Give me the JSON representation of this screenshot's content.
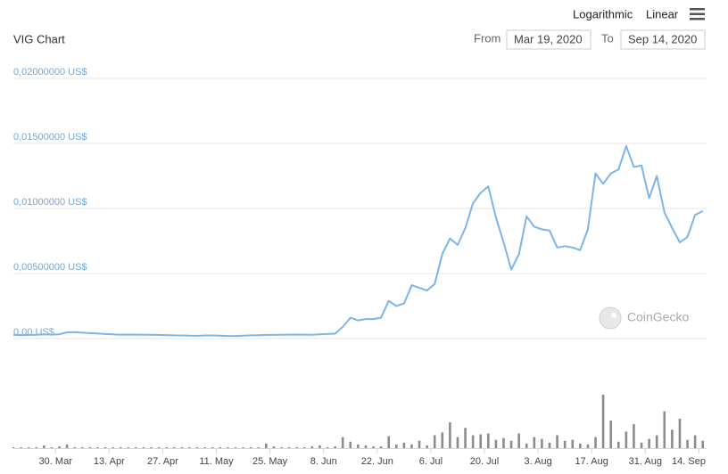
{
  "ui": {
    "log_button": "Logarithmic",
    "linear_button": "Linear",
    "from_label": "From",
    "from_date": "Mar 19, 2020",
    "to_label": "To",
    "to_date": "Sep 14, 2020",
    "watermark": "CoinGecko"
  },
  "chart_data": {
    "type": "line",
    "title": "VIG Chart",
    "x": [
      "2020-03-19",
      "2020-03-21",
      "2020-03-23",
      "2020-03-25",
      "2020-03-27",
      "2020-03-29",
      "2020-03-31",
      "2020-04-02",
      "2020-04-04",
      "2020-04-06",
      "2020-04-08",
      "2020-04-10",
      "2020-04-12",
      "2020-04-14",
      "2020-04-16",
      "2020-04-18",
      "2020-04-20",
      "2020-04-22",
      "2020-04-24",
      "2020-04-26",
      "2020-04-28",
      "2020-04-30",
      "2020-05-02",
      "2020-05-04",
      "2020-05-06",
      "2020-05-08",
      "2020-05-10",
      "2020-05-12",
      "2020-05-14",
      "2020-05-16",
      "2020-05-18",
      "2020-05-20",
      "2020-05-22",
      "2020-05-24",
      "2020-05-26",
      "2020-05-28",
      "2020-05-30",
      "2020-06-01",
      "2020-06-03",
      "2020-06-05",
      "2020-06-07",
      "2020-06-09",
      "2020-06-11",
      "2020-06-13",
      "2020-06-15",
      "2020-06-17",
      "2020-06-19",
      "2020-06-21",
      "2020-06-23",
      "2020-06-25",
      "2020-06-27",
      "2020-06-29",
      "2020-07-01",
      "2020-07-03",
      "2020-07-05",
      "2020-07-07",
      "2020-07-09",
      "2020-07-11",
      "2020-07-13",
      "2020-07-15",
      "2020-07-17",
      "2020-07-19",
      "2020-07-21",
      "2020-07-23",
      "2020-07-25",
      "2020-07-27",
      "2020-07-29",
      "2020-07-31",
      "2020-08-02",
      "2020-08-04",
      "2020-08-06",
      "2020-08-08",
      "2020-08-10",
      "2020-08-12",
      "2020-08-14",
      "2020-08-16",
      "2020-08-18",
      "2020-08-20",
      "2020-08-22",
      "2020-08-24",
      "2020-08-26",
      "2020-08-28",
      "2020-08-30",
      "2020-09-01",
      "2020-09-03",
      "2020-09-05",
      "2020-09-07",
      "2020-09-09",
      "2020-09-11",
      "2020-09-13",
      "2020-09-15"
    ],
    "series": [
      {
        "color": "#7cb5ec",
        "values": [
          0.00028,
          0.00027,
          0.00028,
          0.00029,
          0.00032,
          0.00031,
          0.00033,
          0.00048,
          0.0005,
          0.00045,
          0.00042,
          0.0004,
          0.00035,
          0.00032,
          0.0003,
          0.00031,
          0.0003,
          0.00029,
          0.00029,
          0.00028,
          0.00027,
          0.00025,
          0.00024,
          0.00022,
          0.00021,
          0.00024,
          0.00024,
          0.00022,
          0.0002,
          0.0002,
          0.00022,
          0.00025,
          0.00026,
          0.00028,
          0.00028,
          0.00029,
          0.0003,
          0.00031,
          0.0003,
          0.00029,
          0.00033,
          0.00036,
          0.00038,
          0.0009,
          0.0016,
          0.0014,
          0.0015,
          0.0015,
          0.0016,
          0.0029,
          0.0025,
          0.0027,
          0.0041,
          0.0039,
          0.0037,
          0.0042,
          0.0065,
          0.0077,
          0.0072,
          0.0085,
          0.0104,
          0.0112,
          0.0117,
          0.0093,
          0.0074,
          0.0053,
          0.0065,
          0.0094,
          0.0086,
          0.0084,
          0.0083,
          0.007,
          0.0071,
          0.007,
          0.0068,
          0.0084,
          0.0127,
          0.0119,
          0.0127,
          0.013,
          0.0148,
          0.0132,
          0.0133,
          0.0108,
          0.0125,
          0.0097,
          0.0085,
          0.0074,
          0.0078,
          0.0095,
          0.0098
        ]
      }
    ],
    "volume": {
      "color": "#8c8c8c",
      "values": [
        1,
        1,
        1,
        1,
        3,
        1,
        2,
        4,
        1,
        1,
        1,
        1,
        1,
        1,
        1,
        1,
        1,
        1,
        1,
        1,
        1,
        1,
        1,
        1,
        1,
        1,
        1,
        1,
        1,
        1,
        1,
        1,
        1,
        5,
        2,
        1,
        1,
        1,
        1,
        2,
        3,
        1,
        2,
        12,
        7,
        4,
        3,
        2,
        2,
        13,
        4,
        6,
        4,
        8,
        3,
        14,
        17,
        28,
        12,
        22,
        14,
        15,
        16,
        9,
        11,
        8,
        16,
        5,
        12,
        10,
        6,
        14,
        8,
        9,
        5,
        4,
        12,
        58,
        30,
        7,
        18,
        26,
        6,
        10,
        14,
        40,
        20,
        32,
        9,
        14,
        8
      ]
    },
    "xlim": [
      "2020-03-19",
      "2020-09-16"
    ],
    "xticks": [
      {
        "value": "2020-03-30",
        "label": "30. Mar"
      },
      {
        "value": "2020-04-13",
        "label": "13. Apr"
      },
      {
        "value": "2020-04-27",
        "label": "27. Apr"
      },
      {
        "value": "2020-05-11",
        "label": "11. May"
      },
      {
        "value": "2020-05-25",
        "label": "25. May"
      },
      {
        "value": "2020-06-08",
        "label": "8. Jun"
      },
      {
        "value": "2020-06-22",
        "label": "22. Jun"
      },
      {
        "value": "2020-07-06",
        "label": "6. Jul"
      },
      {
        "value": "2020-07-20",
        "label": "20. Jul"
      },
      {
        "value": "2020-08-03",
        "label": "3. Aug"
      },
      {
        "value": "2020-08-17",
        "label": "17. Aug"
      },
      {
        "value": "2020-08-31",
        "label": "31. Aug"
      },
      {
        "value": "2020-09-14",
        "label": "14. Sep"
      }
    ],
    "ylim": [
      0,
      0.02
    ],
    "yticks": [
      {
        "value": 0,
        "label": "0,00 US$"
      },
      {
        "value": 0.005,
        "label": "0,00500000 US$"
      },
      {
        "value": 0.01,
        "label": "0,01000000 US$"
      },
      {
        "value": 0.015,
        "label": "0,01500000 US$"
      },
      {
        "value": 0.02,
        "label": "0,02000000 US$"
      }
    ],
    "grid": true
  }
}
